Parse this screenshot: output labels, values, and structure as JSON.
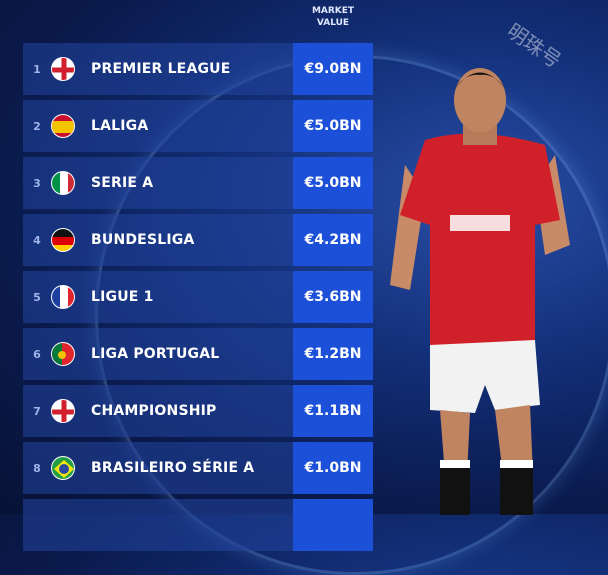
{
  "chart_data": {
    "type": "table",
    "columns": [
      "",
      "",
      "",
      "MARKET VALUE"
    ],
    "header": "MARKET\nVALUE",
    "rows": [
      {
        "rank": "1",
        "flag": "england",
        "league": "PREMIER LEAGUE",
        "value": "€9.0BN"
      },
      {
        "rank": "2",
        "flag": "spain",
        "league": "LALIGA",
        "value": "€5.0BN"
      },
      {
        "rank": "3",
        "flag": "italy",
        "league": "SERIE A",
        "value": "€5.0BN"
      },
      {
        "rank": "4",
        "flag": "germany",
        "league": "BUNDESLIGA",
        "value": "€4.2BN"
      },
      {
        "rank": "5",
        "flag": "france",
        "league": "LIGUE 1",
        "value": "€3.6BN"
      },
      {
        "rank": "6",
        "flag": "portugal",
        "league": "LIGA PORTUGAL",
        "value": "€1.2BN"
      },
      {
        "rank": "7",
        "flag": "england",
        "league": "CHAMPIONSHIP",
        "value": "€1.1BN"
      },
      {
        "rank": "8",
        "flag": "brazil",
        "league": "BRASILEIRO SÉRIE A",
        "value": "€1.0BN"
      }
    ]
  },
  "header_line1": "MARKET",
  "header_line2": "VALUE",
  "watermark": "明珠号",
  "colors": {
    "value_cell": "#1d50d8",
    "background": "#0a1a4c",
    "shirt": "#d0202a"
  }
}
